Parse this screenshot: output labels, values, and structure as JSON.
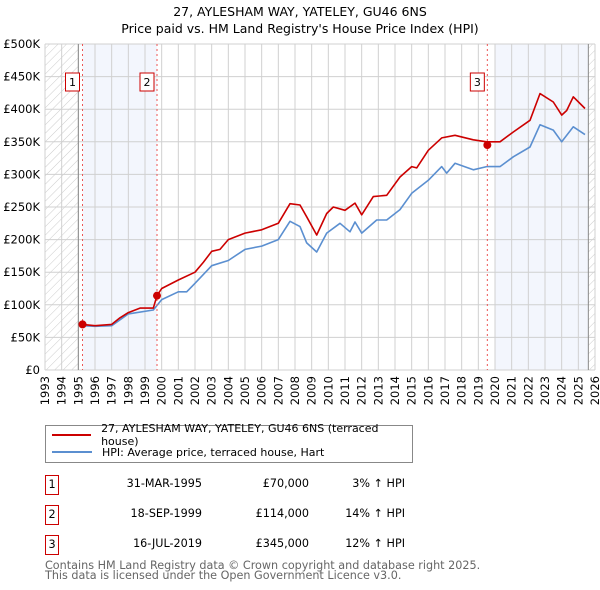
{
  "chart_data": {
    "type": "line",
    "title": "27, AYLESHAM WAY, YATELEY, GU46 6NS",
    "subtitle": "Price paid vs. HM Land Registry's House Price Index (HPI)",
    "xlabel": "",
    "ylabel": "",
    "xlim": [
      1993,
      2026
    ],
    "ylim": [
      0,
      500000
    ],
    "x_ticks": [
      "1993",
      "1994",
      "1995",
      "1996",
      "1997",
      "1998",
      "1999",
      "2000",
      "2001",
      "2002",
      "2003",
      "2004",
      "2005",
      "2006",
      "2007",
      "2008",
      "2009",
      "2010",
      "2011",
      "2012",
      "2013",
      "2014",
      "2015",
      "2016",
      "2017",
      "2018",
      "2019",
      "2020",
      "2021",
      "2022",
      "2023",
      "2024",
      "2025",
      "2026"
    ],
    "y_ticks": [
      {
        "v": 0,
        "label": "£0"
      },
      {
        "v": 50000,
        "label": "£50K"
      },
      {
        "v": 100000,
        "label": "£100K"
      },
      {
        "v": 150000,
        "label": "£150K"
      },
      {
        "v": 200000,
        "label": "£200K"
      },
      {
        "v": 250000,
        "label": "£250K"
      },
      {
        "v": 300000,
        "label": "£300K"
      },
      {
        "v": 350000,
        "label": "£350K"
      },
      {
        "v": 400000,
        "label": "£400K"
      },
      {
        "v": 450000,
        "label": "£450K"
      },
      {
        "v": 500000,
        "label": "£500K"
      }
    ],
    "grid": true,
    "series": [
      {
        "name": "27, AYLESHAM WAY, YATELEY, GU46 6NS (terraced house)",
        "color": "#cc0000",
        "x": [
          1995.25,
          1996,
          1997,
          1997.5,
          1998,
          1998.7,
          1999.5,
          1999.72,
          2000,
          2001,
          2002,
          2002.5,
          2003,
          2003.5,
          2004,
          2005,
          2006,
          2007,
          2007.7,
          2008.3,
          2008.7,
          2009.3,
          2009.9,
          2010.3,
          2011,
          2011.6,
          2012,
          2012.7,
          2013.5,
          2014.3,
          2015,
          2015.3,
          2016,
          2016.8,
          2017.6,
          2018.7,
          2019.5,
          2020.3,
          2021.1,
          2022.1,
          2022.7,
          2023.5,
          2024,
          2024.3,
          2024.7,
          2025.4
        ],
        "values": [
          70000,
          68000,
          70000,
          80000,
          88000,
          95000,
          95000,
          114000,
          125000,
          138000,
          150000,
          165000,
          182000,
          185000,
          200000,
          210000,
          215000,
          225000,
          255000,
          253000,
          235000,
          207000,
          240000,
          250000,
          245000,
          256000,
          238000,
          266000,
          268000,
          296000,
          312000,
          310000,
          337000,
          356000,
          360000,
          353000,
          350000,
          350000,
          365000,
          383000,
          424000,
          411000,
          391000,
          398000,
          419000,
          401000
        ]
      },
      {
        "name": "HPI: Average price, terraced house, Hart",
        "color": "#5b8fd0",
        "x": [
          1995.25,
          1996,
          1997,
          1998,
          1999.5,
          2000,
          2001,
          2001.5,
          2002,
          2003,
          2004,
          2005,
          2006,
          2007,
          2007.7,
          2008.3,
          2008.7,
          2009.3,
          2009.9,
          2010.7,
          2011.3,
          2011.6,
          2012,
          2012.9,
          2013.5,
          2014.3,
          2015,
          2016,
          2016.8,
          2017.1,
          2017.6,
          2018.7,
          2019.5,
          2020.3,
          2021.1,
          2022.1,
          2022.7,
          2023.5,
          2024,
          2024.7,
          2025.4
        ],
        "values": [
          68000,
          67000,
          68000,
          86000,
          92000,
          108000,
          120000,
          120000,
          133000,
          160000,
          168000,
          185000,
          190000,
          200000,
          228000,
          220000,
          195000,
          181000,
          210000,
          225000,
          212000,
          227000,
          210000,
          230000,
          230000,
          246000,
          271000,
          291000,
          312000,
          302000,
          317000,
          307000,
          312000,
          312000,
          327000,
          342000,
          376000,
          368000,
          350000,
          373000,
          361000
        ]
      }
    ],
    "sales": [
      {
        "id": "1",
        "x": 1995.25,
        "value": 70000,
        "date": "31-MAR-1995",
        "price": "£70,000",
        "hpi": "3% ↑ HPI"
      },
      {
        "id": "2",
        "x": 1999.72,
        "value": 114000,
        "date": "18-SEP-1999",
        "price": "£114,000",
        "hpi": "14% ↑ HPI"
      },
      {
        "id": "3",
        "x": 2019.54,
        "value": 345000,
        "date": "16-JUL-2019",
        "price": "£345,000",
        "hpi": "12% ↑ HPI"
      }
    ],
    "shaded_periods": [
      [
        1995.25,
        1999.72
      ],
      [
        2020.0,
        2025.6
      ]
    ],
    "hatched_periods": [
      [
        1993,
        1995.0
      ],
      [
        2025.6,
        2026
      ]
    ]
  },
  "footer": {
    "line1": "Contains HM Land Registry data © Crown copyright and database right 2025.",
    "line2": "This data is licensed under the Open Government Licence v3.0."
  }
}
